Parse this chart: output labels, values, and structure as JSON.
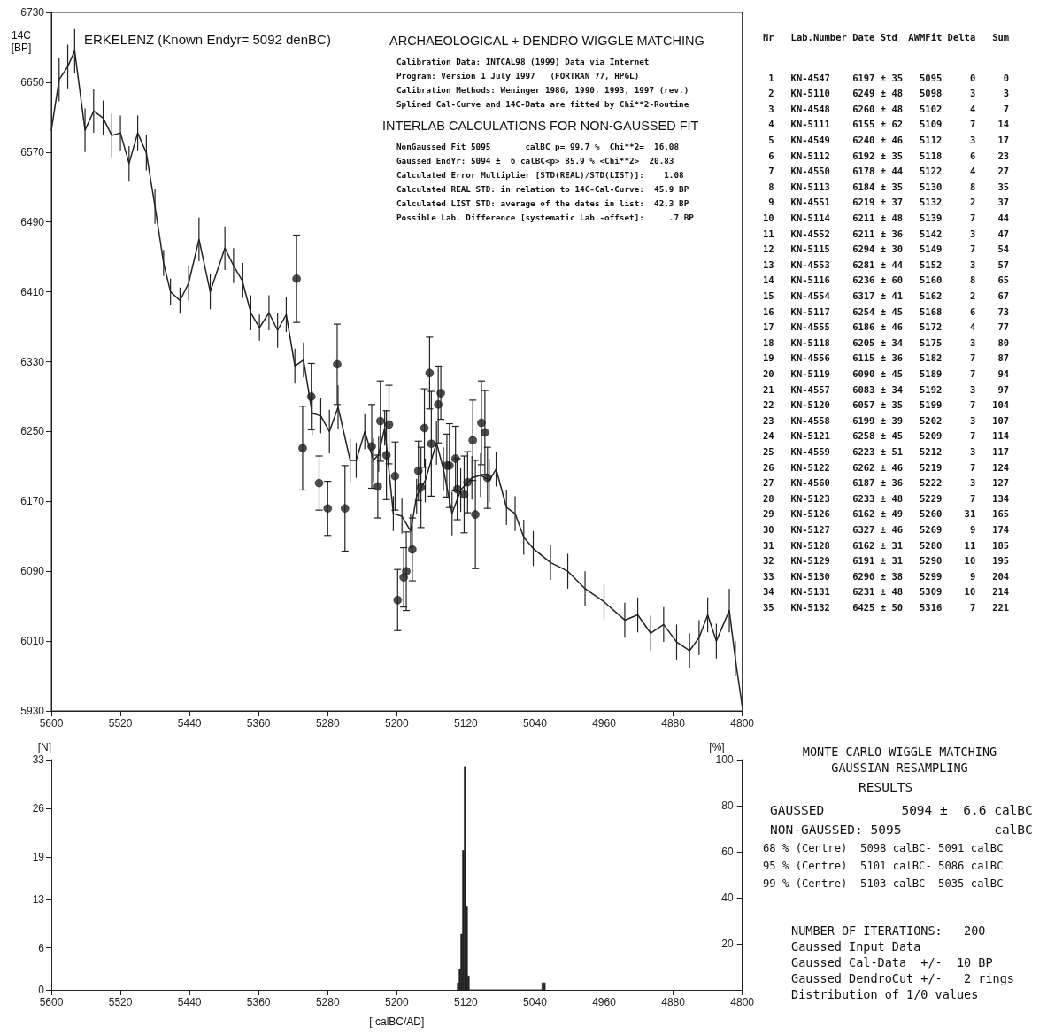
{
  "chart_data": [
    {
      "type": "line",
      "title": "ERKELENZ (Known Endyr= 5092 denBC)",
      "subtitle": "ARCHAEOLOGICAL + DENDRO WIGGLE MATCHING",
      "ylabel": "14C [BP]",
      "annotations": [
        "Calibration Data: INTCAL98 (1999) Data via Internet",
        "Program: Version 1 July 1997   (FORTRAN 77, HPGL)",
        "Calibration Methods: Weninger 1986, 1990, 1993, 1997 (rev.)",
        "Splined Cal-Curve and 14C-Data are fitted by Chi**2-Routine",
        "INTERLAB CALCULATIONS FOR NON-GAUSSED FIT",
        "NonGaussed Fit 5095       calBC p= 99.7 %  Chi**2=  16.08",
        "Gaussed EndYr: 5094 ±  6 calBC<p> 85.9 % <Chi**2>  20.83",
        "Calculated Error Multiplier [STD(REAL)/STD(LIST)]:    1.08",
        "Calculated REAL STD: in relation to 14C-Cal-Curve:  45.9 BP",
        "Calculated LIST STD: average of the dates in list:  42.3 BP",
        "Possible Lab. Difference [systematic Lab.-offset]:     .7 BP"
      ],
      "xlim": [
        5600,
        4800
      ],
      "xticks": [
        5600,
        5520,
        5440,
        5360,
        5280,
        5200,
        5120,
        5040,
        4960,
        4880,
        4800
      ],
      "ylim": [
        5930,
        6730
      ],
      "yticks": [
        5930,
        6010,
        6090,
        6170,
        6250,
        6330,
        6410,
        6490,
        6570,
        6650,
        6730
      ],
      "series": [
        {
          "type": "line",
          "color": "#222222",
          "marker": "none",
          "x": [
            5600,
            5591,
            5581,
            5573,
            5561,
            5551,
            5540,
            5530,
            5520,
            5510,
            5500,
            5490,
            5480,
            5470,
            5462,
            5451,
            5441,
            5429,
            5416,
            5399,
            5389,
            5379,
            5369,
            5359,
            5348,
            5338,
            5328,
            5318,
            5308,
            5298,
            5288,
            5278,
            5268,
            5254,
            5247,
            5237,
            5227,
            5221,
            5214,
            5204,
            5194,
            5184,
            5177,
            5167,
            5154,
            5146,
            5136,
            5126,
            5113,
            5103,
            5093,
            5085,
            5073,
            5063,
            5053,
            5042,
            5022,
            5002,
            4982,
            4960,
            4936,
            4921,
            4906,
            4891,
            4876,
            4861,
            4850,
            4840,
            4830,
            4815,
            4808,
            4800
          ],
          "values": [
            6595,
            6653,
            6668,
            6686,
            6595,
            6617,
            6609,
            6589,
            6592,
            6557,
            6592,
            6569,
            6508,
            6443,
            6410,
            6400,
            6420,
            6470,
            6410,
            6460,
            6440,
            6423,
            6386,
            6369,
            6386,
            6366,
            6384,
            6325,
            6332,
            6271,
            6268,
            6250,
            6278,
            6217,
            6217,
            6250,
            6217,
            6224,
            6254,
            6156,
            6153,
            6136,
            6176,
            6194,
            6237,
            6207,
            6156,
            6183,
            6197,
            6200,
            6194,
            6207,
            6163,
            6156,
            6129,
            6116,
            6100,
            6090,
            6070,
            6055,
            6034,
            6040,
            6019,
            6029,
            6009,
            5999,
            6014,
            6040,
            6010,
            6045,
            5990,
            5935
          ],
          "errors": [
            null,
            25,
            25,
            25,
            25,
            25,
            20,
            25,
            20,
            20,
            20,
            20,
            20,
            15,
            15,
            15,
            20,
            25,
            20,
            25,
            20,
            20,
            20,
            15,
            20,
            20,
            20,
            20,
            20,
            25,
            20,
            25,
            25,
            25,
            20,
            20,
            25,
            20,
            20,
            20,
            20,
            20,
            20,
            25,
            25,
            25,
            25,
            25,
            25,
            25,
            25,
            20,
            20,
            20,
            20,
            20,
            20,
            20,
            20,
            20,
            20,
            20,
            20,
            20,
            20,
            20,
            20,
            20,
            20,
            25,
            20,
            null
          ]
        },
        {
          "type": "scatter",
          "color": "#222222",
          "marker": "circle",
          "x": [
            5095,
            5098,
            5102,
            5109,
            5112,
            5118,
            5122,
            5130,
            5132,
            5139,
            5142,
            5149,
            5152,
            5160,
            5162,
            5168,
            5172,
            5175,
            5182,
            5189,
            5192,
            5199,
            5202,
            5209,
            5212,
            5219,
            5222,
            5229,
            5260,
            5269,
            5280,
            5290,
            5299,
            5309,
            5316
          ],
          "values": [
            6197,
            6249,
            6260,
            6155,
            6240,
            6192,
            6178,
            6184,
            6219,
            6211,
            6211,
            6294,
            6281,
            6236,
            6317,
            6254,
            6186,
            6205,
            6115,
            6090,
            6083,
            6057,
            6199,
            6258,
            6223,
            6262,
            6187,
            6233,
            6162,
            6327,
            6162,
            6191,
            6290,
            6231,
            6425
          ],
          "errors": [
            35,
            48,
            48,
            62,
            46,
            35,
            44,
            35,
            37,
            48,
            36,
            30,
            44,
            60,
            41,
            45,
            46,
            34,
            36,
            45,
            34,
            35,
            39,
            45,
            51,
            46,
            36,
            48,
            49,
            46,
            31,
            31,
            38,
            48,
            50
          ]
        }
      ]
    },
    {
      "type": "other",
      "annotations": [
        "Nr   Lab.Number Date Std  AWMFit Delta   Sum",
        " 1   KN-4547    6197 ± 35   5095     0     0",
        " 2   KN-5110    6249 ± 48   5098     3     3",
        " 3   KN-4548    6260 ± 48   5102     4     7",
        " 4   KN-5111    6155 ± 62   5109     7    14",
        " 5   KN-4549    6240 ± 46   5112     3    17",
        " 6   KN-5112    6192 ± 35   5118     6    23",
        " 7   KN-4550    6178 ± 44   5122     4    27",
        " 8   KN-5113    6184 ± 35   5130     8    35",
        " 9   KN-4551    6219 ± 37   5132     2    37",
        "10   KN-5114    6211 ± 48   5139     7    44",
        "11   KN-4552    6211 ± 36   5142     3    47",
        "12   KN-5115    6294 ± 30   5149     7    54",
        "13   KN-4553    6281 ± 44   5152     3    57",
        "14   KN-5116    6236 ± 60   5160     8    65",
        "15   KN-4554    6317 ± 41   5162     2    67",
        "16   KN-5117    6254 ± 45   5168     6    73",
        "17   KN-4555    6186 ± 46   5172     4    77",
        "18   KN-5118    6205 ± 34   5175     3    80",
        "19   KN-4556    6115 ± 36   5182     7    87",
        "20   KN-5119    6090 ± 45   5189     7    94",
        "21   KN-4557    6083 ± 34   5192     3    97",
        "22   KN-5120    6057 ± 35   5199     7   104",
        "23   KN-4558    6199 ± 39   5202     3   107",
        "24   KN-5121    6258 ± 45   5209     7   114",
        "25   KN-4559    6223 ± 51   5212     3   117",
        "26   KN-5122    6262 ± 46   5219     7   124",
        "27   KN-4560    6187 ± 36   5222     3   127",
        "28   KN-5123    6233 ± 48   5229     7   134",
        "29   KN-5126    6162 ± 49   5260    31   165",
        "30   KN-5127    6327 ± 46   5269     9   174",
        "31   KN-5128    6162 ± 31   5280    11   185",
        "32   KN-5129    6191 ± 31   5290    10   195",
        "33   KN-5130    6290 ± 38   5299     9   204",
        "34   KN-5131    6231 ± 48   5309    10   214",
        "35   KN-5132    6425 ± 50   5316     7   221"
      ]
    },
    {
      "type": "histogram",
      "xlabel": "[ calBC/AD]",
      "ylabel": "[N]",
      "y2label": "[%]",
      "color": "#222222",
      "xlim": [
        5600,
        4800
      ],
      "xticks": [
        5600,
        5520,
        5440,
        5360,
        5280,
        5200,
        5120,
        5040,
        4960,
        4880,
        4800
      ],
      "ylim": [
        0,
        33
      ],
      "yticks": [
        0,
        6,
        13,
        19,
        26,
        33
      ],
      "y2lim": [
        0,
        100
      ],
      "y2ticks": [
        20,
        40,
        60,
        80,
        100
      ],
      "bins": [
        5028,
        5030,
        5032,
        5116,
        5118,
        5120,
        5122,
        5124,
        5126,
        5128,
        5130
      ],
      "values": [
        1,
        1,
        0,
        2,
        12,
        32,
        20,
        8,
        3,
        1
      ]
    },
    {
      "type": "other",
      "title": "MONTE CARLO WIGGLE MATCHING",
      "subtitle": "GAUSSIAN RESAMPLING",
      "annotations": [
        "RESULTS",
        "GAUSSED          5094 ±  6.6 calBC",
        "NON-GAUSSED: 5095            calBC",
        "68 % (Centre)  5098 calBC- 5091 calBC",
        "95 % (Centre)  5101 calBC- 5086 calBC",
        "99 % (Centre)  5103 calBC- 5035 calBC",
        "NUMBER OF ITERATIONS:   200",
        "Gaussed Input Data",
        "Gaussed Cal-Data  +/-  10 BP",
        "Gaussed DendroCut +/-   2 rings",
        "Distribution of 1/0 values"
      ]
    }
  ]
}
